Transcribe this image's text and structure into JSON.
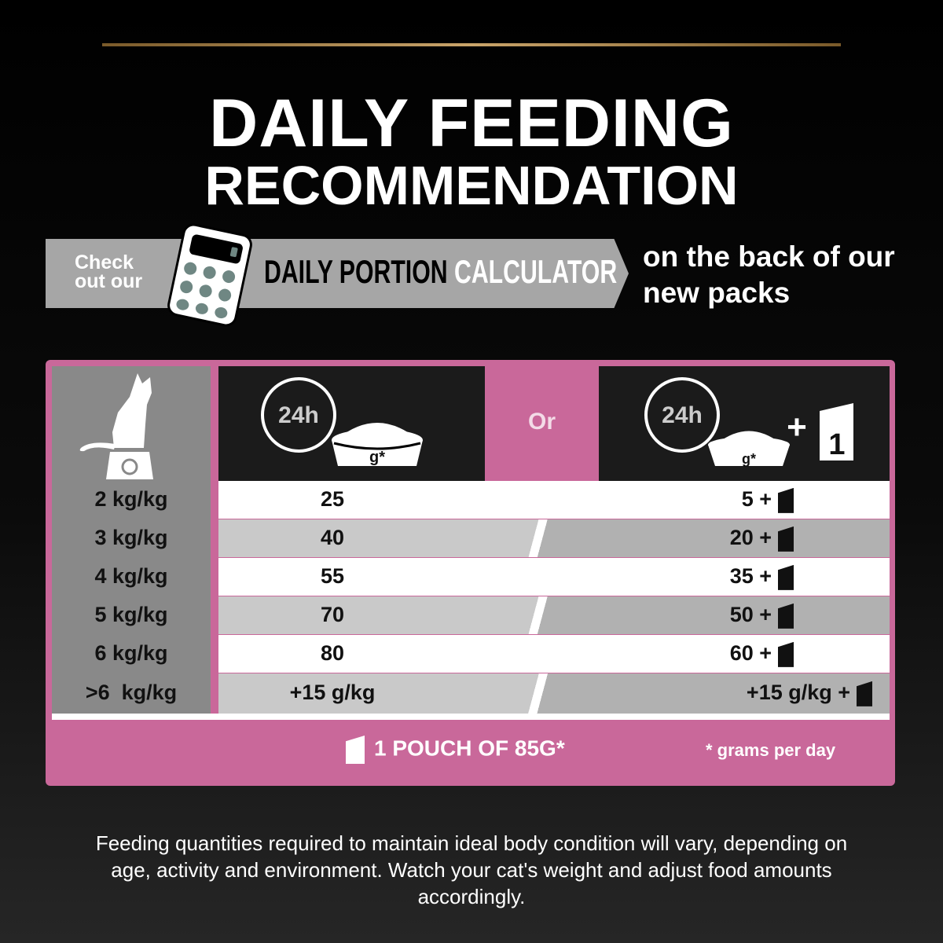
{
  "title": {
    "line1": "DAILY FEEDING",
    "line2": "RECOMMENDATION"
  },
  "banner": {
    "check": "Check out our",
    "bold": "DAILY PORTION",
    "light": "CALCULATOR",
    "after": "on the back of our new packs",
    "icon": "calculator-icon"
  },
  "table": {
    "or_label": "Or",
    "header_icons": [
      "cat-on-scale-icon",
      "clock-24h-bowl-icon",
      "clock-24h-bowl-plus-pouch-icon"
    ],
    "clock_label": "24h",
    "bowl_label": "g*",
    "pouch_number": "1",
    "rows": [
      {
        "weight": "2 kg/kg",
        "dry": "25",
        "mixed": "5 +"
      },
      {
        "weight": "3 kg/kg",
        "dry": "40",
        "mixed": "20 +"
      },
      {
        "weight": "4 kg/kg",
        "dry": "55",
        "mixed": "35 +"
      },
      {
        "weight": "5 kg/kg",
        "dry": "70",
        "mixed": "50 +"
      },
      {
        "weight": "6 kg/kg",
        "dry": "80",
        "mixed": "60 +"
      },
      {
        "weight": ">6  kg/kg",
        "dry": "+15 g/kg",
        "mixed": "+15 g/kg +"
      }
    ],
    "pouch_note": "1 POUCH OF 85G*",
    "grams_note": "* grams per day"
  },
  "footer": "Feeding quantities required to maintain ideal body condition will vary, depending on age, activity and environment. Watch your cat's weight and adjust food amounts accordingly.",
  "colors": {
    "pink": "#c9689a",
    "gold": "#c9a46a",
    "gray": "#a6a6a6"
  }
}
